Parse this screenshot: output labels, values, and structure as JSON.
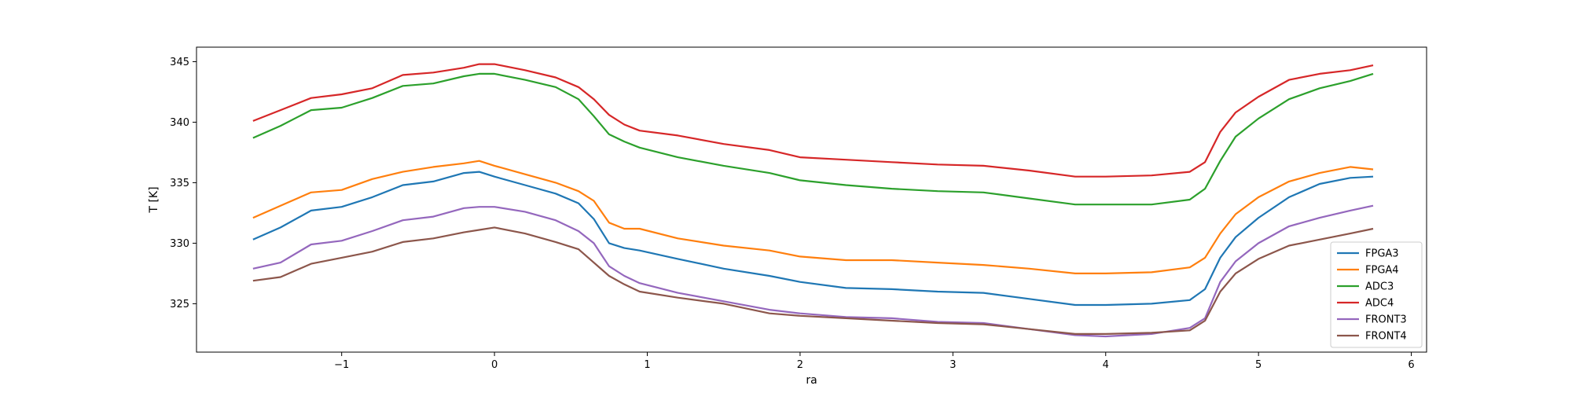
{
  "chart_data": {
    "type": "line",
    "title": "",
    "xlabel": "ra",
    "ylabel": "T [K]",
    "xlim": [
      -1.95,
      6.1
    ],
    "ylim": [
      321.0,
      346.2
    ],
    "xticks": [
      -1,
      0,
      1,
      2,
      3,
      4,
      5,
      6
    ],
    "xtick_labels": [
      "−1",
      "0",
      "1",
      "2",
      "3",
      "4",
      "5",
      "6"
    ],
    "yticks": [
      325,
      330,
      335,
      340,
      345
    ],
    "ytick_labels": [
      "325",
      "330",
      "335",
      "340",
      "345"
    ],
    "grid": false,
    "legend_position": "lower-right",
    "x": [
      -1.58,
      -1.4,
      -1.2,
      -1.0,
      -0.8,
      -0.6,
      -0.4,
      -0.2,
      -0.1,
      0.0,
      0.2,
      0.4,
      0.55,
      0.65,
      0.75,
      0.85,
      0.95,
      1.2,
      1.5,
      1.8,
      2.0,
      2.3,
      2.6,
      2.9,
      3.2,
      3.5,
      3.8,
      4.0,
      4.3,
      4.55,
      4.65,
      4.75,
      4.85,
      5.0,
      5.2,
      5.4,
      5.6,
      5.75
    ],
    "series": [
      {
        "name": "FPGA3",
        "color": "#1f77b4",
        "values": [
          330.3,
          331.3,
          332.7,
          333.0,
          333.8,
          334.8,
          335.1,
          335.8,
          335.9,
          335.5,
          334.8,
          334.1,
          333.3,
          332.0,
          330.0,
          329.6,
          329.4,
          328.7,
          327.9,
          327.3,
          326.8,
          326.3,
          326.2,
          326.0,
          325.9,
          325.4,
          324.9,
          324.9,
          325.0,
          325.3,
          326.2,
          328.8,
          330.5,
          332.1,
          333.8,
          334.9,
          335.4,
          335.5
        ]
      },
      {
        "name": "FPGA4",
        "color": "#ff7f0e",
        "values": [
          332.1,
          333.1,
          334.2,
          334.4,
          335.3,
          335.9,
          336.3,
          336.6,
          336.8,
          336.4,
          335.7,
          335.0,
          334.3,
          333.5,
          331.7,
          331.2,
          331.2,
          330.4,
          329.8,
          329.4,
          328.9,
          328.6,
          328.6,
          328.4,
          328.2,
          327.9,
          327.5,
          327.5,
          327.6,
          328.0,
          328.8,
          330.8,
          332.4,
          333.8,
          335.1,
          335.8,
          336.3,
          336.1
        ]
      },
      {
        "name": "ADC3",
        "color": "#2ca02c",
        "values": [
          338.7,
          339.7,
          341.0,
          341.2,
          342.0,
          343.0,
          343.2,
          343.8,
          344.0,
          344.0,
          343.5,
          342.9,
          341.9,
          340.5,
          339.0,
          338.4,
          337.9,
          337.1,
          336.4,
          335.8,
          335.2,
          334.8,
          334.5,
          334.3,
          334.2,
          333.7,
          333.2,
          333.2,
          333.2,
          333.6,
          334.5,
          336.8,
          338.8,
          340.3,
          341.9,
          342.8,
          343.4,
          344.0
        ]
      },
      {
        "name": "ADC4",
        "color": "#d62728",
        "values": [
          340.1,
          341.0,
          342.0,
          342.3,
          342.8,
          343.9,
          344.1,
          344.5,
          344.8,
          344.8,
          344.3,
          343.7,
          342.9,
          341.9,
          340.6,
          339.8,
          339.3,
          338.9,
          338.2,
          337.7,
          337.1,
          336.9,
          336.7,
          336.5,
          336.4,
          336.0,
          335.5,
          335.5,
          335.6,
          335.9,
          336.7,
          339.2,
          340.8,
          342.1,
          343.5,
          344.0,
          344.3,
          344.7
        ]
      },
      {
        "name": "FRONT3",
        "color": "#9467bd",
        "values": [
          327.9,
          328.4,
          329.9,
          330.2,
          331.0,
          331.9,
          332.2,
          332.9,
          333.0,
          333.0,
          332.6,
          331.9,
          331.0,
          330.0,
          328.1,
          327.3,
          326.7,
          325.9,
          325.2,
          324.5,
          324.2,
          323.9,
          323.8,
          323.5,
          323.4,
          322.9,
          322.4,
          322.3,
          322.5,
          323.0,
          323.8,
          326.8,
          328.5,
          330.0,
          331.4,
          332.1,
          332.7,
          333.1
        ]
      },
      {
        "name": "FRONT4",
        "color": "#8c564b",
        "values": [
          326.9,
          327.2,
          328.3,
          328.8,
          329.3,
          330.1,
          330.4,
          330.9,
          331.1,
          331.3,
          330.8,
          330.1,
          329.5,
          328.4,
          327.3,
          326.6,
          326.0,
          325.5,
          325.0,
          324.2,
          324.0,
          323.8,
          323.6,
          323.4,
          323.3,
          322.9,
          322.5,
          322.5,
          322.6,
          322.8,
          323.6,
          326.0,
          327.5,
          328.7,
          329.8,
          330.3,
          330.8,
          331.2
        ]
      }
    ]
  }
}
